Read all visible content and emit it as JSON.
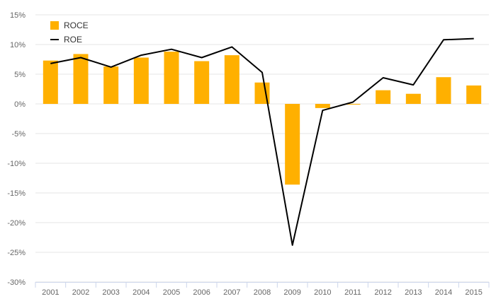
{
  "chart_data": {
    "type": "bar",
    "categories": [
      "2001",
      "2002",
      "2003",
      "2004",
      "2005",
      "2006",
      "2007",
      "2008",
      "2009",
      "2010",
      "2011",
      "2012",
      "2013",
      "2014",
      "2015"
    ],
    "series": [
      {
        "name": "ROCE",
        "type": "bar",
        "color": "#FFB000",
        "values": [
          7.3,
          8.4,
          6.3,
          7.8,
          8.8,
          7.2,
          8.2,
          3.6,
          -13.6,
          -0.7,
          -0.1,
          2.3,
          1.7,
          4.5,
          3.1
        ]
      },
      {
        "name": "ROE",
        "type": "line",
        "color": "#000000",
        "values": [
          6.8,
          7.8,
          6.2,
          8.2,
          9.2,
          7.8,
          9.6,
          5.3,
          -23.8,
          -1.1,
          0.3,
          4.4,
          3.2,
          10.8,
          11.0
        ]
      }
    ],
    "y_ticks": [
      "15%",
      "10%",
      "5%",
      "0%",
      "-5%",
      "-10%",
      "-15%",
      "-20%",
      "-25%",
      "-30%"
    ],
    "y_tick_values": [
      15,
      10,
      5,
      0,
      -5,
      -10,
      -15,
      -20,
      -25,
      -30
    ],
    "ylim": [
      -30,
      15
    ],
    "legend_position": "top-left",
    "grid": true
  }
}
